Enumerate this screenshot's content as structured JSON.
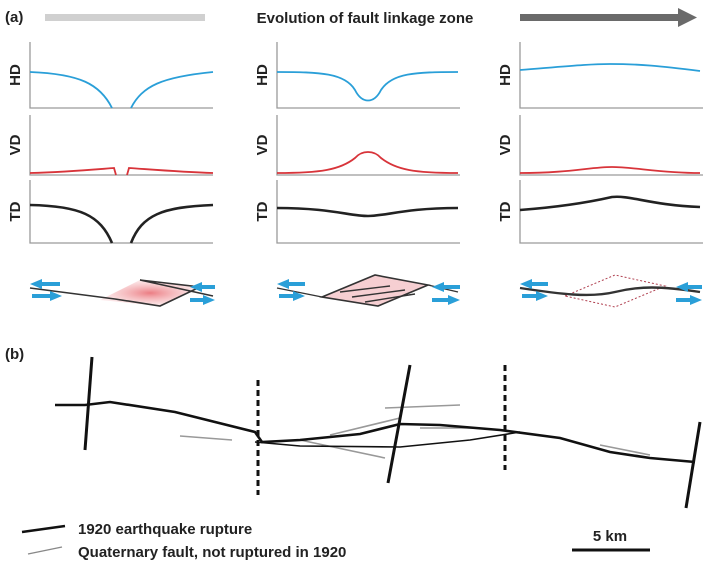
{
  "panel_a": {
    "label": "(a)",
    "title": "Evolution of fault linkage zone",
    "columns": [
      {
        "rows": [
          "HD",
          "VD",
          "TD"
        ]
      },
      {
        "rows": [
          "HD",
          "VD",
          "TD"
        ]
      },
      {
        "rows": [
          "HD",
          "VD",
          "TD"
        ]
      }
    ]
  },
  "panel_b": {
    "label": "(b)",
    "legend": [
      "1920 earthquake rupture",
      "Quaternary fault, not ruptured in 1920"
    ],
    "scale_bar": "5 km"
  }
}
